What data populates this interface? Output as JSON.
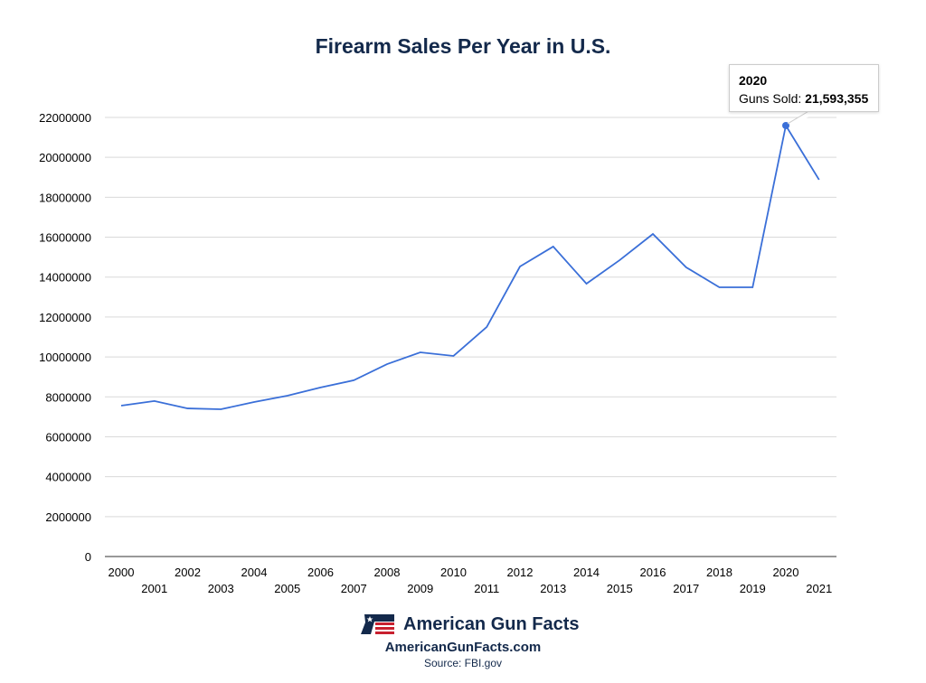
{
  "chart_data": {
    "type": "line",
    "title": "Firearm Sales Per Year in U.S.",
    "xlabel": "",
    "ylabel": "",
    "ylim": [
      0,
      22000000
    ],
    "yticks": [
      0,
      2000000,
      4000000,
      6000000,
      8000000,
      10000000,
      12000000,
      14000000,
      16000000,
      18000000,
      20000000,
      22000000
    ],
    "grid": true,
    "line_color": "#3a6fd8",
    "categories": [
      "2000",
      "2001",
      "2002",
      "2003",
      "2004",
      "2005",
      "2006",
      "2007",
      "2008",
      "2009",
      "2010",
      "2011",
      "2012",
      "2013",
      "2014",
      "2015",
      "2016",
      "2017",
      "2018",
      "2019",
      "2020",
      "2021"
    ],
    "series": [
      {
        "values": [
          7560000,
          7790000,
          7420000,
          7380000,
          7740000,
          8060000,
          8470000,
          8830000,
          9640000,
          10230000,
          10050000,
          11500000,
          14530000,
          15530000,
          13670000,
          14850000,
          16160000,
          14490000,
          13490000,
          13490000,
          21593355,
          18880000
        ]
      }
    ],
    "tooltip": {
      "year": "2020",
      "label": "Guns Sold: ",
      "value": "21,593,355"
    }
  },
  "footer": {
    "brand": "American Gun Facts",
    "site": "AmericanGunFacts.com",
    "source": "Source: FBI.gov"
  },
  "colors": {
    "title": "#13294b",
    "flag_red": "#c8202f",
    "flag_blue": "#13294b"
  }
}
